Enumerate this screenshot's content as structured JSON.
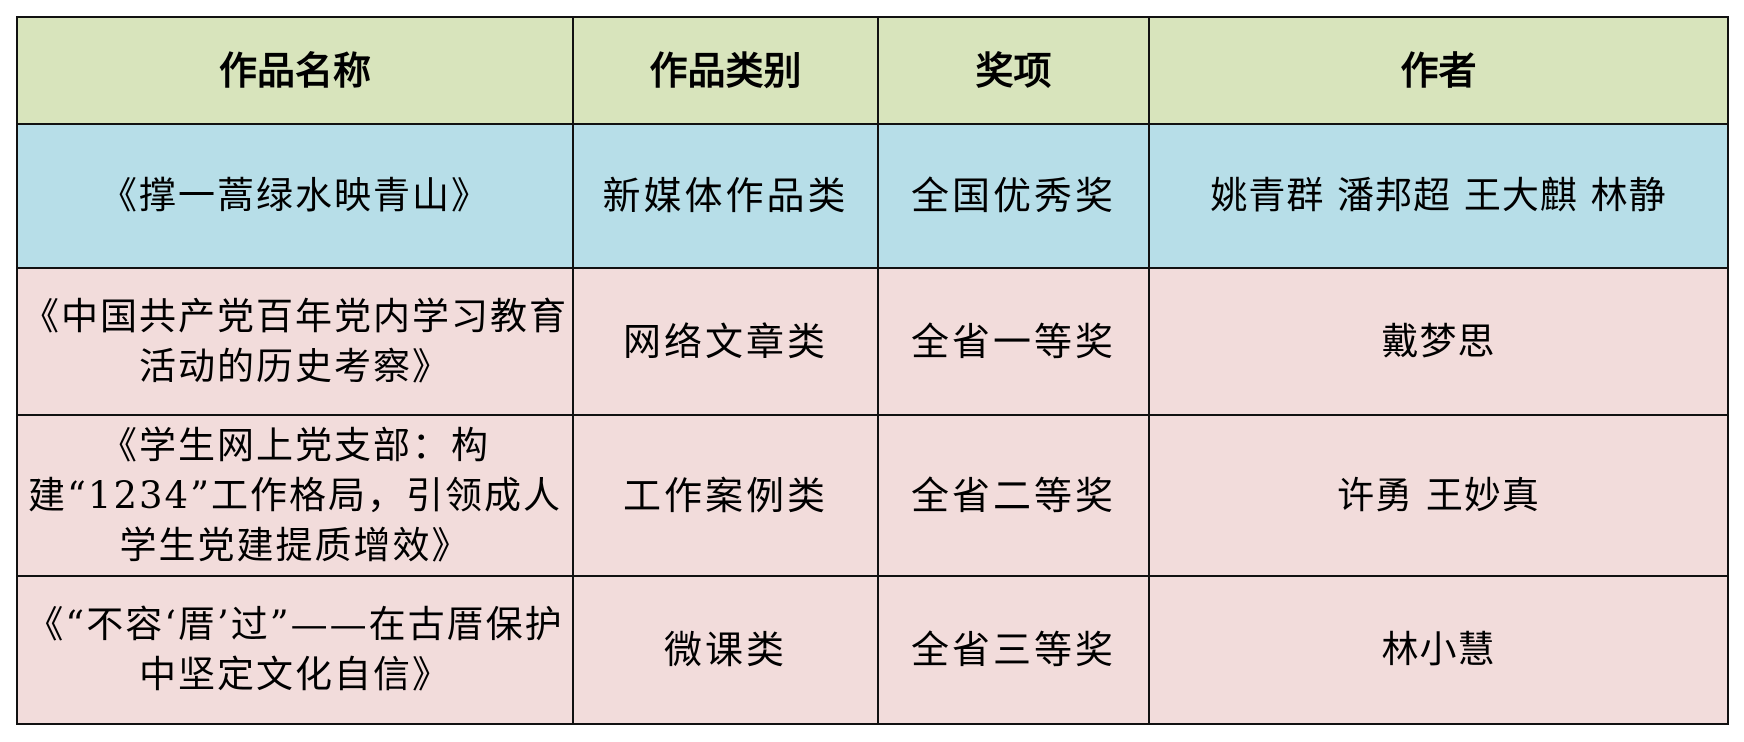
{
  "columns": [
    "作品名称",
    "作品类别",
    "奖项",
    "作者"
  ],
  "colors": {
    "header": "#d8e4bc",
    "national_row": "#b7dee8",
    "provincial_row": "#f2dcdb",
    "border": "#111111"
  },
  "rows": [
    {
      "title": "《撑一蒿绿水映青山》",
      "category": "新媒体作品类",
      "award": "全国优秀奖",
      "authors": "姚青群 潘邦超 王大麒 林静"
    },
    {
      "title": "《中国共产党百年党内学习教育活动的历史考察》",
      "category": "网络文章类",
      "award": "全省一等奖",
      "authors": "戴梦思"
    },
    {
      "title": "《学生网上党支部：构建“1234”工作格局，引领成人学生党建提质增效》",
      "category": "工作案例类",
      "award": "全省二等奖",
      "authors": "许勇 王妙真"
    },
    {
      "title": "《“不容‘厝’过”——在古厝保护中坚定文化自信》",
      "category": "微课类",
      "award": "全省三等奖",
      "authors": "林小慧"
    }
  ]
}
